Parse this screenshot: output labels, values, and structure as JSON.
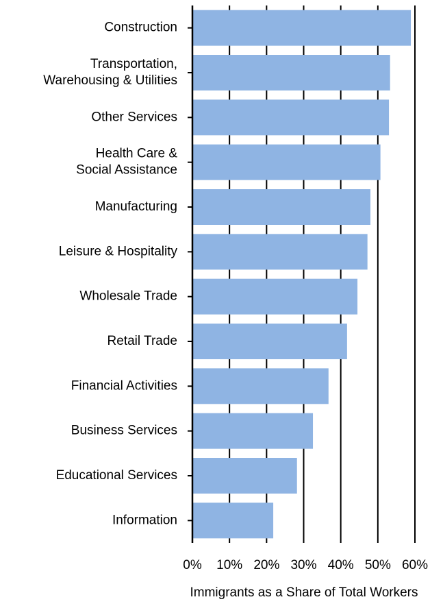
{
  "chart_data": {
    "type": "barh",
    "xlabel": "Immigrants as a Share of Total Workers",
    "categories": [
      "Construction",
      "Transportation,\nWarehousing & Utilities",
      "Other Services",
      "Health Care &\nSocial Assistance",
      "Manufacturing",
      "Leisure & Hospitality",
      "Wholesale Trade",
      "Retail Trade",
      "Financial Activities",
      "Business Services",
      "Educational Services",
      "Information"
    ],
    "values": [
      58.9,
      53.3,
      53.0,
      50.7,
      48.0,
      47.2,
      44.5,
      41.7,
      36.7,
      32.5,
      28.2,
      21.8
    ],
    "color": "#8fb4e3",
    "xlim": [
      0,
      60
    ],
    "xticks": [
      {
        "value": 0,
        "label": "0%"
      },
      {
        "value": 10,
        "label": "10%"
      },
      {
        "value": 20,
        "label": "20%"
      },
      {
        "value": 30,
        "label": "30%"
      },
      {
        "value": 40,
        "label": "40%"
      },
      {
        "value": 50,
        "label": "50%"
      },
      {
        "value": 60,
        "label": "60%"
      }
    ],
    "grid": true
  }
}
